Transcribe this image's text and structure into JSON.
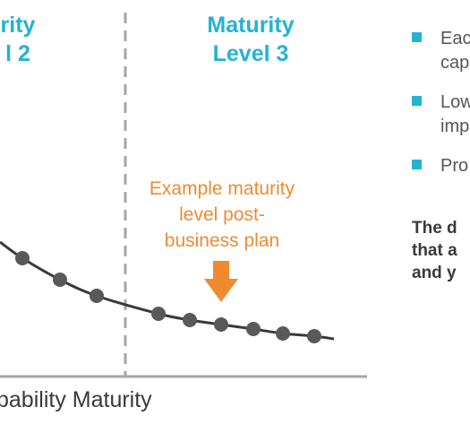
{
  "chart_data": {
    "type": "line",
    "xlabel": "pability Maturity",
    "levels": [
      "rity\nl 2",
      "Maturity\nLevel 3"
    ],
    "annotation": "Example maturity\nlevel post-\nbusiness plan",
    "series": [
      {
        "values": [
          [
            25,
            288
          ],
          [
            67,
            312
          ],
          [
            108,
            330
          ],
          [
            177,
            350
          ],
          [
            212,
            357
          ],
          [
            247,
            362
          ],
          [
            283,
            367
          ],
          [
            316,
            372
          ],
          [
            351,
            375
          ]
        ]
      }
    ]
  },
  "sidebar": {
    "bullets": [
      "Eac\ncap",
      "Low\nimp",
      "Pro"
    ],
    "bold_text": "The d\nthat a\nand y"
  },
  "colors": {
    "accent": "#23b3d3",
    "annotation": "#f08a31",
    "line": "#3a3a3a",
    "marker": "#595959",
    "divider": "#a6a6a6"
  }
}
